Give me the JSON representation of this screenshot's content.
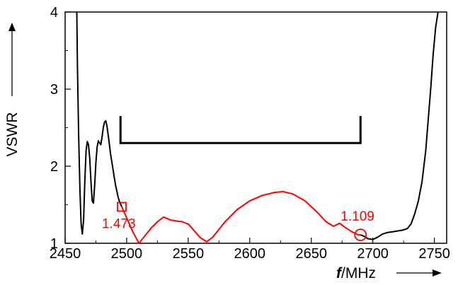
{
  "chart_data": {
    "type": "line",
    "xlabel_symbol": "f",
    "xlabel_unit": "/MHz",
    "ylabel": "VSWR",
    "xlim": [
      2450,
      2760
    ],
    "ylim": [
      1,
      4
    ],
    "x_ticks": [
      "2450",
      "2500",
      "2550",
      "2600",
      "2650",
      "2700",
      "2750"
    ],
    "y_ticks": [
      "1",
      "2",
      "3",
      "4"
    ],
    "grid": false,
    "colors": {
      "out_of_band": "#000000",
      "in_band": "#ff0000",
      "bracket": "#000000"
    },
    "band": {
      "x_start": 2495,
      "x_end": 2690,
      "y": 2.3,
      "y_top": 2.65
    },
    "series": [
      {
        "segment": "low_out_of_band",
        "x": [
          2459.5,
          2460,
          2461,
          2462,
          2463,
          2464,
          2465,
          2466,
          2467,
          2468,
          2469,
          2470,
          2471,
          2472,
          2473,
          2474,
          2475,
          2476,
          2477,
          2478,
          2479,
          2480,
          2481,
          2482,
          2483,
          2484,
          2485,
          2486,
          2487,
          2488,
          2489,
          2490,
          2491,
          2492,
          2493,
          2494,
          2495,
          2496
        ],
        "y": [
          4.0,
          3.3,
          2.4,
          1.7,
          1.25,
          1.12,
          1.3,
          1.8,
          2.2,
          2.32,
          2.28,
          2.1,
          1.8,
          1.55,
          1.52,
          1.75,
          2.05,
          2.25,
          2.33,
          2.3,
          2.28,
          2.38,
          2.5,
          2.57,
          2.59,
          2.52,
          2.4,
          2.28,
          2.15,
          2.05,
          1.95,
          1.85,
          1.75,
          1.68,
          1.6,
          1.55,
          1.51,
          1.473
        ]
      },
      {
        "segment": "in_band",
        "x": [
          2496,
          2500,
          2505,
          2510,
          2515,
          2520,
          2525,
          2530,
          2533,
          2536,
          2540,
          2545,
          2550,
          2555,
          2560,
          2565,
          2570,
          2575,
          2580,
          2590,
          2600,
          2610,
          2620,
          2627,
          2635,
          2645,
          2655,
          2662,
          2668,
          2673,
          2678,
          2683,
          2688,
          2690
        ],
        "y": [
          1.473,
          1.33,
          1.15,
          1.0,
          1.1,
          1.2,
          1.28,
          1.34,
          1.32,
          1.3,
          1.29,
          1.28,
          1.25,
          1.16,
          1.07,
          1.02,
          1.08,
          1.18,
          1.28,
          1.44,
          1.55,
          1.62,
          1.66,
          1.67,
          1.64,
          1.55,
          1.4,
          1.28,
          1.22,
          1.26,
          1.2,
          1.15,
          1.11,
          1.109
        ]
      },
      {
        "segment": "high_out_of_band",
        "x": [
          2690,
          2693,
          2696,
          2700,
          2704,
          2708,
          2712,
          2716,
          2720,
          2724,
          2728,
          2731,
          2734,
          2737,
          2740,
          2743,
          2745,
          2747,
          2749,
          2751,
          2753
        ],
        "y": [
          1.109,
          1.09,
          1.06,
          1.05,
          1.08,
          1.12,
          1.14,
          1.15,
          1.16,
          1.17,
          1.19,
          1.25,
          1.38,
          1.55,
          1.8,
          2.2,
          2.6,
          3.0,
          3.45,
          3.8,
          4.0
        ]
      }
    ],
    "markers": [
      {
        "label": "1.473",
        "x": 2496,
        "y": 1.473,
        "shape": "square"
      },
      {
        "label": "1.109",
        "x": 2690,
        "y": 1.109,
        "shape": "circle"
      }
    ]
  }
}
